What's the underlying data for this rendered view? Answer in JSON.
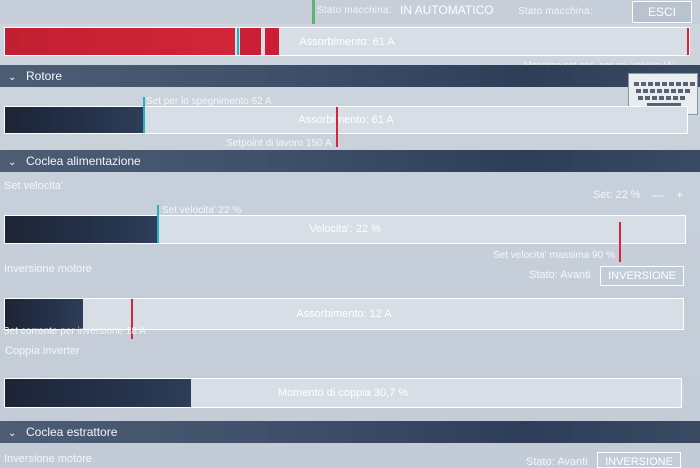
{
  "header": {
    "status_label_1": "Stato macchina:",
    "status_value_1": "IN AUTOMATICO",
    "status_label_2": "Stato macchina:",
    "esc_button": "ESCI"
  },
  "absorption_top": {
    "label": "Assorbimento: 61 A",
    "max_label": "Massimo set ass. per ap. valvola [A]",
    "fill_fraction": 0.4
  },
  "rotore": {
    "title": "Rotore",
    "set_off_label": "Set per lo spegnimento 62 A",
    "bar_label": "Assorbimento: 61 A",
    "setpoint_label": "Setpoint di lavoro 150 A",
    "fill_fraction": 0.2
  },
  "coclea_alimentazione": {
    "title": "Coclea alimentazione",
    "set_velocity_label": "Set velocita'",
    "set_value": "Set: 22 %",
    "minus": "—",
    "plus": "+",
    "set_marker_label": "Set velocita' 22 %",
    "velocity_label": "Velocita': 22 %",
    "max_label": "Set velocita' massima 90 %",
    "fill_fraction": 0.22,
    "inversion_label": "Inversione motore",
    "state_label": "Stato: Avanti",
    "inversion_button": "INVERSIONE",
    "absorption_label": "Assorbimento: 12 A",
    "inversion_current_label": "Set corrente per inversione 18 A",
    "torque_title": "Coppia inverter",
    "torque_label": "Momento di coppia 30,7 %",
    "torque_fill_fraction": 0.27
  },
  "coclea_estrattore": {
    "title": "Coclea estrattore",
    "inversion_label": "Inversione motore",
    "state_label": "Stato: Avanti",
    "inversion_button": "INVERSIONE"
  },
  "colors": {
    "red": "#d8243a",
    "cyan": "#23b3c9",
    "dark_fill": "#1d2435"
  }
}
